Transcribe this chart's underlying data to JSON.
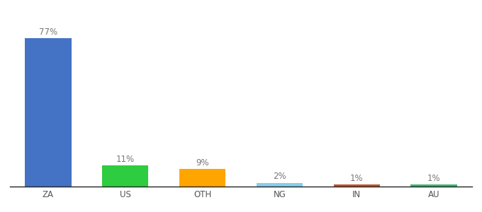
{
  "categories": [
    "ZA",
    "US",
    "OTH",
    "NG",
    "IN",
    "AU"
  ],
  "values": [
    77,
    11,
    9,
    2,
    1,
    1
  ],
  "labels": [
    "77%",
    "11%",
    "9%",
    "2%",
    "1%",
    "1%"
  ],
  "bar_colors": [
    "#4472C4",
    "#2ECC40",
    "#FFA500",
    "#87CEEB",
    "#C0522B",
    "#3CB371"
  ],
  "background_color": "#ffffff",
  "label_fontsize": 8.5,
  "tick_fontsize": 8.5,
  "ylim": [
    0,
    88
  ],
  "bar_width": 0.6
}
